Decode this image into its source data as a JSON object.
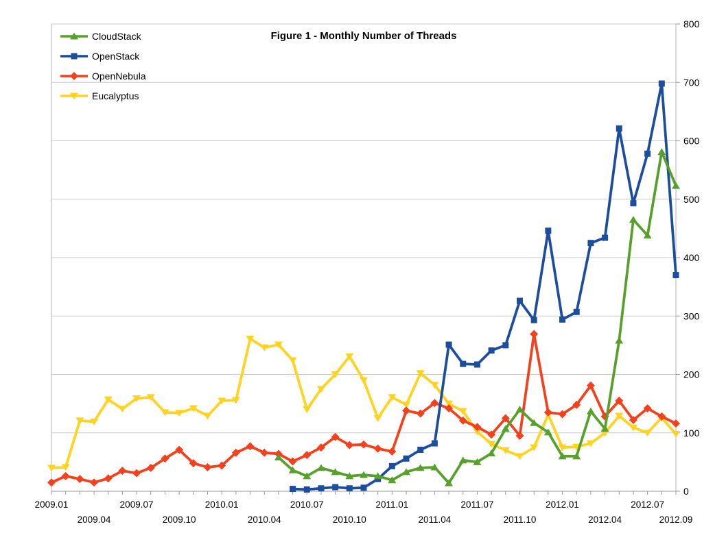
{
  "chart_data": {
    "type": "line",
    "title": "Figure 1 - Monthly Number of Threads",
    "xlabel": "",
    "ylabel": "",
    "ylim": [
      0,
      800
    ],
    "ytick_step": 100,
    "y_tick_labels": [
      "0",
      "100",
      "200",
      "300",
      "400",
      "500",
      "600",
      "700",
      "800"
    ],
    "grid": true,
    "legend_position": "top-left",
    "y_axis_side": "right",
    "categories": [
      "2009.01",
      "2009.02",
      "2009.03",
      "2009.04",
      "2009.05",
      "2009.06",
      "2009.07",
      "2009.08",
      "2009.09",
      "2009.10",
      "2009.11",
      "2009.12",
      "2010.01",
      "2010.02",
      "2010.03",
      "2010.04",
      "2010.05",
      "2010.06",
      "2010.07",
      "2010.08",
      "2010.09",
      "2010.10",
      "2010.11",
      "2010.12",
      "2011.01",
      "2011.02",
      "2011.03",
      "2011.04",
      "2011.05",
      "2011.06",
      "2011.07",
      "2011.08",
      "2011.09",
      "2011.10",
      "2011.11",
      "2011.12",
      "2012.01",
      "2012.02",
      "2012.03",
      "2012.04",
      "2012.05",
      "2012.06",
      "2012.07",
      "2012.08",
      "2012.09"
    ],
    "x_tick_labels": [
      "2009.01",
      "2009.04",
      "2009.07",
      "2009.10",
      "2010.01",
      "2010.04",
      "2010.07",
      "2010.10",
      "2011.01",
      "2011.04",
      "2011.07",
      "2011.10",
      "2012.01",
      "2012.04",
      "2012.07",
      "2012.09"
    ],
    "series": [
      {
        "name": "CloudStack",
        "color": "#58A02C",
        "marker": "triangle-up",
        "values": [
          null,
          null,
          null,
          null,
          null,
          null,
          null,
          null,
          null,
          null,
          null,
          null,
          null,
          null,
          null,
          null,
          58,
          36,
          26,
          40,
          33,
          26,
          28,
          26,
          19,
          33,
          40,
          41,
          14,
          53,
          50,
          65,
          107,
          140,
          117,
          101,
          60,
          60,
          137,
          107,
          258,
          465,
          438,
          581,
          523
        ]
      },
      {
        "name": "OpenStack",
        "color": "#1C4E9D",
        "marker": "square",
        "values": [
          null,
          null,
          null,
          null,
          null,
          null,
          null,
          null,
          null,
          null,
          null,
          null,
          null,
          null,
          null,
          null,
          null,
          4,
          3,
          5,
          7,
          5,
          6,
          21,
          43,
          56,
          71,
          82,
          251,
          218,
          217,
          241,
          250,
          326,
          293,
          446,
          294,
          307,
          425,
          434,
          621,
          493,
          578,
          698,
          370
        ]
      },
      {
        "name": "OpenNebula",
        "color": "#F2411C",
        "marker": "diamond",
        "values": [
          15,
          26,
          21,
          15,
          22,
          35,
          31,
          40,
          56,
          71,
          48,
          41,
          44,
          66,
          77,
          66,
          64,
          51,
          62,
          75,
          93,
          79,
          80,
          73,
          68,
          138,
          133,
          151,
          142,
          121,
          110,
          97,
          125,
          95,
          269,
          135,
          132,
          148,
          181,
          128,
          155,
          122,
          142,
          128,
          116
        ]
      },
      {
        "name": "Eucalyptus",
        "color": "#FFD320",
        "marker": "triangle-down",
        "values": [
          40,
          41,
          121,
          119,
          157,
          141,
          159,
          161,
          135,
          134,
          142,
          129,
          155,
          156,
          261,
          246,
          251,
          224,
          140,
          175,
          200,
          231,
          190,
          125,
          161,
          148,
          202,
          182,
          150,
          137,
          102,
          81,
          70,
          60,
          75,
          131,
          75,
          76,
          82,
          100,
          129,
          109,
          100,
          126,
          98
        ]
      }
    ],
    "draw_order": [
      "Eucalyptus",
      "OpenNebula",
      "OpenStack",
      "CloudStack"
    ],
    "legend_order": [
      "CloudStack",
      "OpenStack",
      "OpenNebula",
      "Eucalyptus"
    ]
  }
}
